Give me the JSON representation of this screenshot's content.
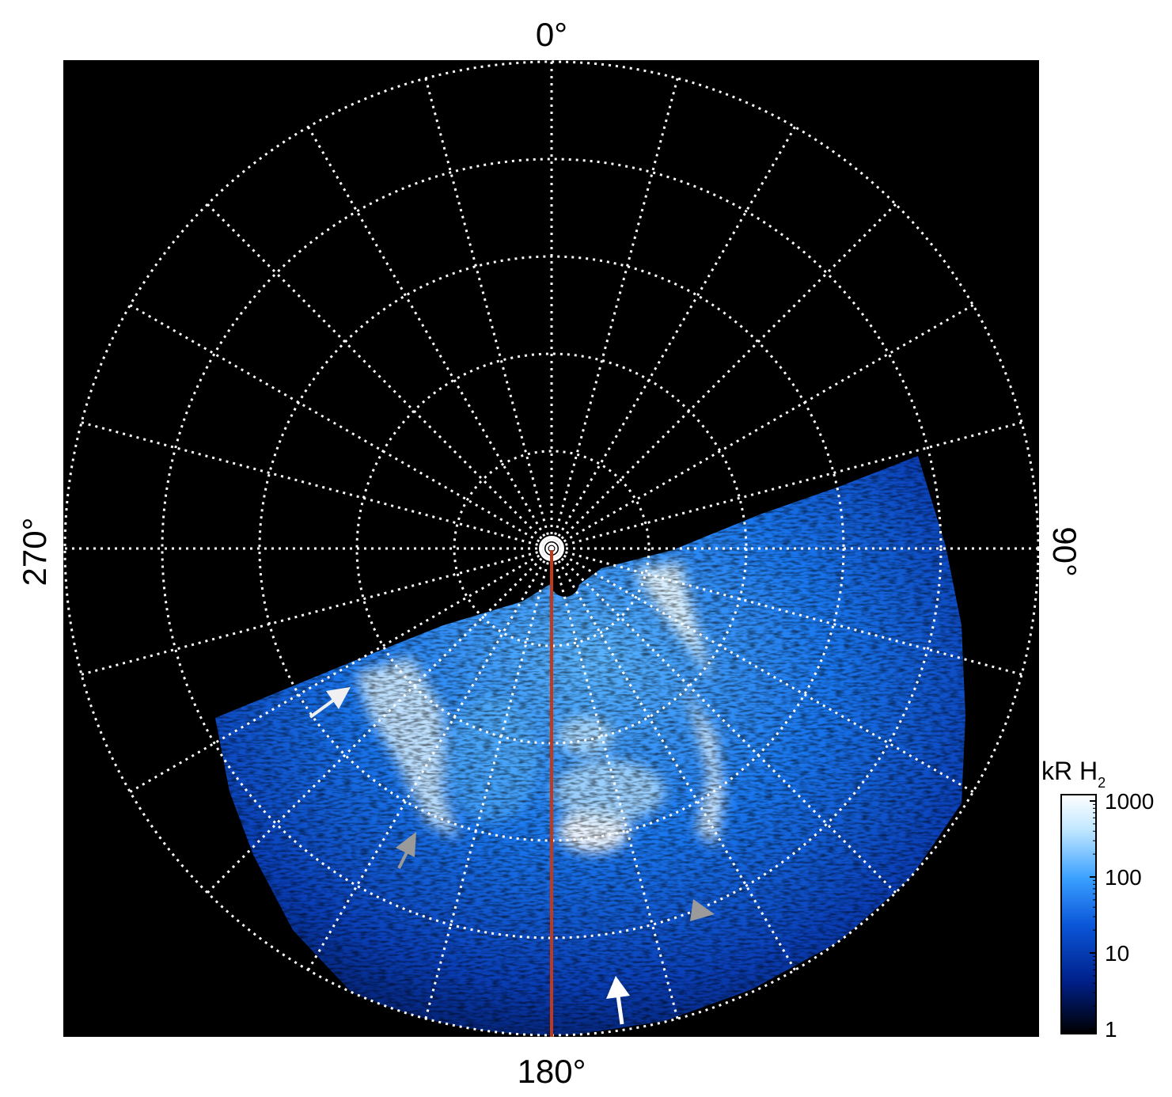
{
  "figure": {
    "direction_labels": {
      "top": "0°",
      "bottom": "180°",
      "left": "270°",
      "right": "90°"
    },
    "colorbar": {
      "title": "kR H",
      "title_subscript": "2",
      "scale": "log",
      "ticks": [
        "1000",
        "100",
        "10",
        "1"
      ],
      "tick_values": [
        1000,
        100,
        10,
        1
      ],
      "colors": [
        "#ffffff",
        "#bfe6ff",
        "#3aa0ff",
        "#0a55d8",
        "#00208a",
        "#000000"
      ]
    },
    "background_color": "#000000",
    "grid": {
      "style": "dotted",
      "color": "#ffffff",
      "meridian_step_deg": 15,
      "parallel_rings": 5
    },
    "central_meridian_color": "#c0391b",
    "annotations": [
      {
        "name": "white-arrow",
        "color": "#f0f0f0"
      },
      {
        "name": "gray-arrow",
        "color": "#9a9a9a"
      },
      {
        "name": "gray-arrowhead",
        "color": "#9a9a9a"
      },
      {
        "name": "white-arrow",
        "color": "#ffffff"
      }
    ]
  }
}
